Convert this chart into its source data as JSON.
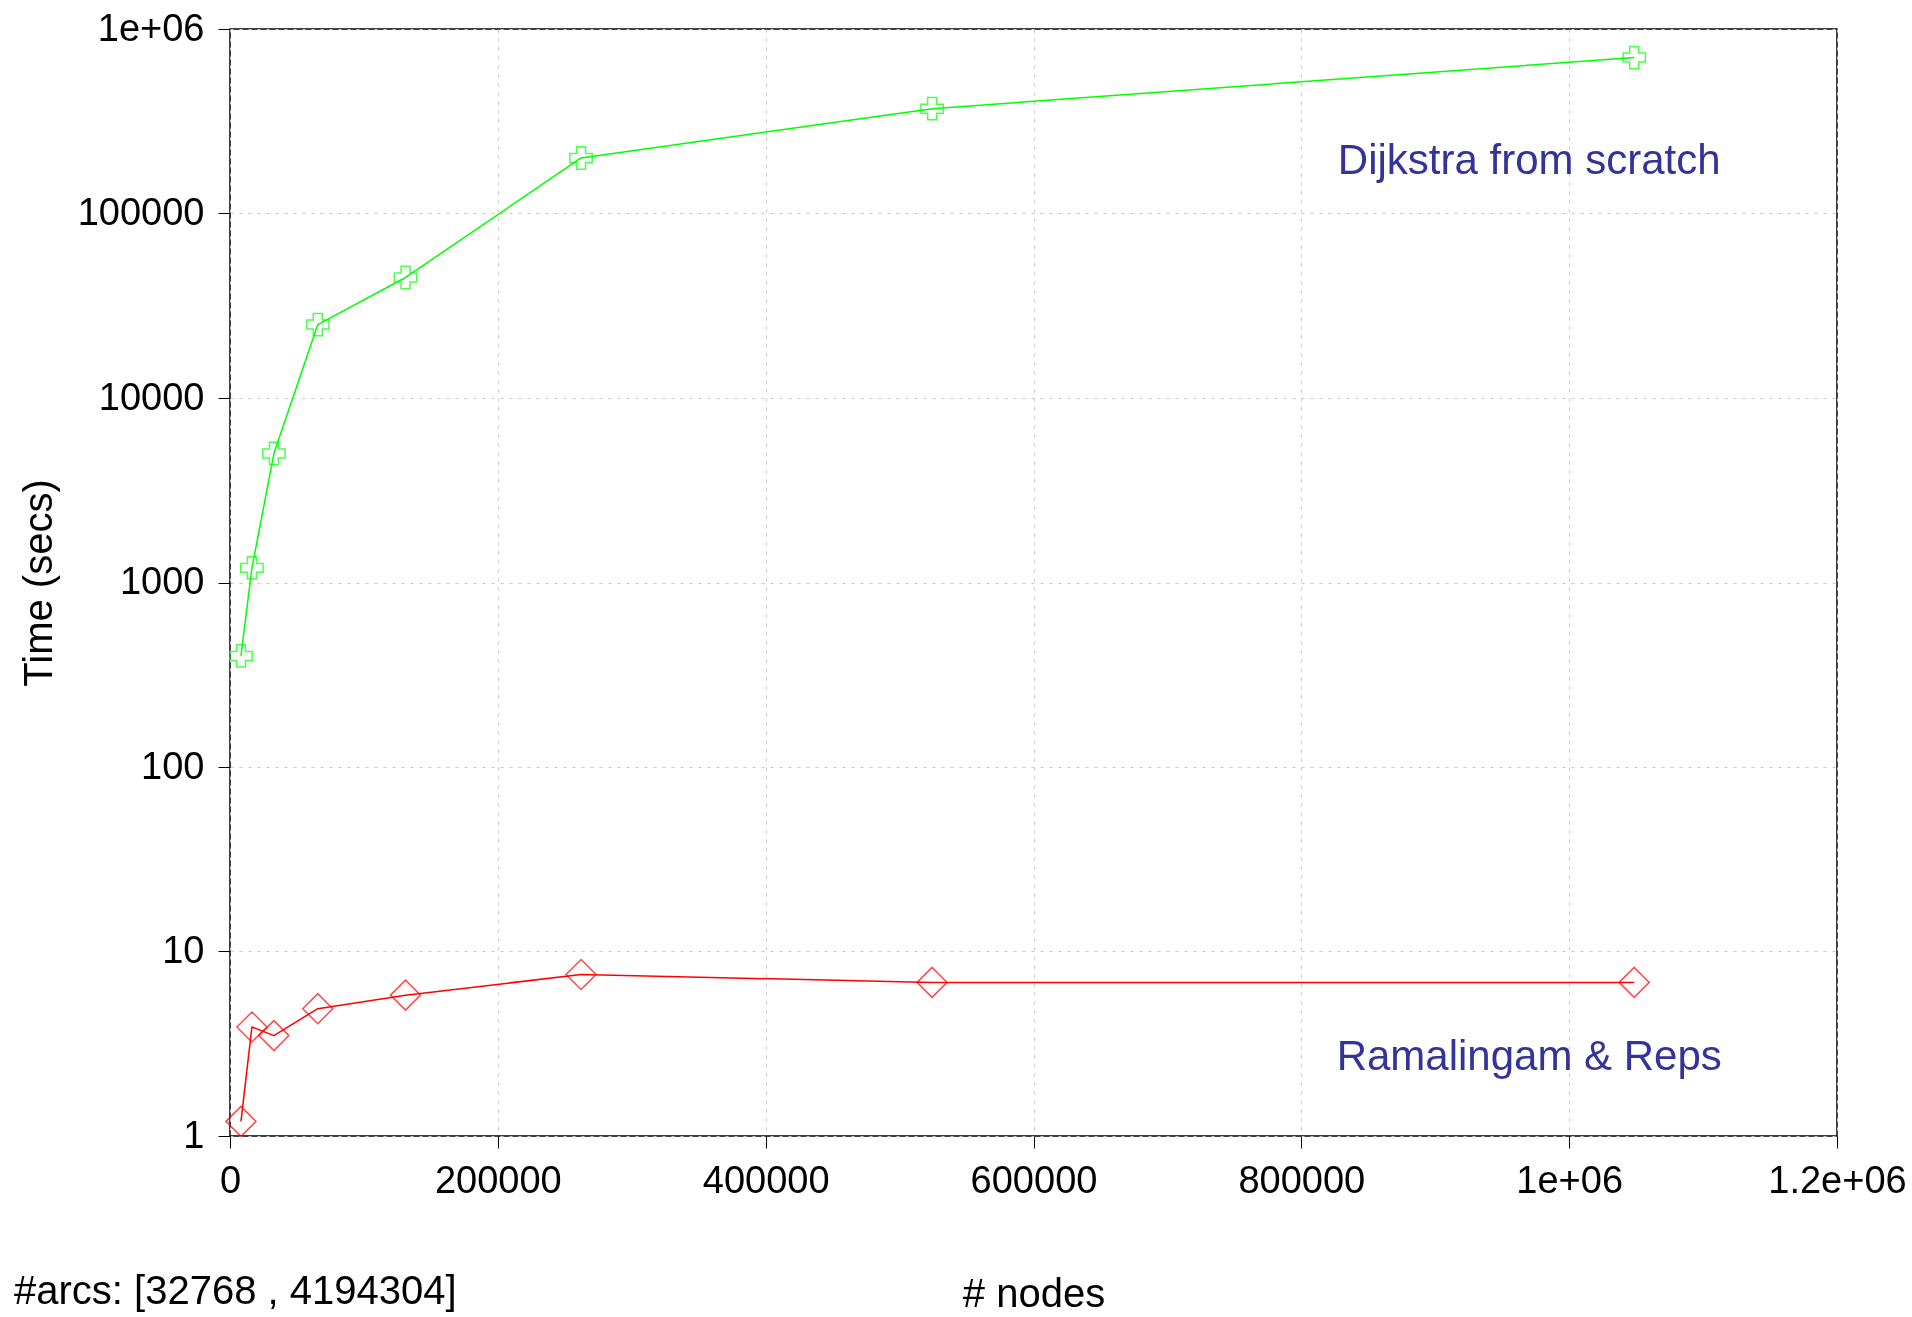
{
  "chart_data": {
    "type": "line",
    "xlabel": "# nodes",
    "ylabel": "Time (secs)",
    "log": "y",
    "x": [
      8192,
      16384,
      32768,
      65536,
      131072,
      262144,
      524288,
      1048576
    ],
    "series": [
      {
        "name": "Dijkstra from scratch",
        "color": "#00ff00",
        "marker": "cross",
        "values": [
          400,
          1200,
          5000,
          25000,
          45000,
          200000,
          370000,
          700000
        ]
      },
      {
        "name": "Ramalingam & Reps",
        "color": "#ff0000",
        "marker": "diamond",
        "values": [
          1.2,
          3.9,
          3.5,
          4.9,
          5.8,
          7.5,
          6.8,
          6.8
        ]
      }
    ],
    "xlim": [
      0,
      1200000
    ],
    "xticks": [
      0,
      200000,
      400000,
      600000,
      800000,
      {
        "value": 1000000,
        "label": "1e+06"
      },
      {
        "value": 1200000,
        "label": "1.2e+06"
      }
    ],
    "ylim": [
      1,
      1000000
    ],
    "yticks": [
      1,
      10,
      100,
      1000,
      10000,
      100000,
      {
        "value": 1000000,
        "label": "1e+06"
      }
    ],
    "grid": true,
    "line_style": "solid",
    "annotations": [
      "#arcs: [32768 , 4194304]"
    ]
  }
}
